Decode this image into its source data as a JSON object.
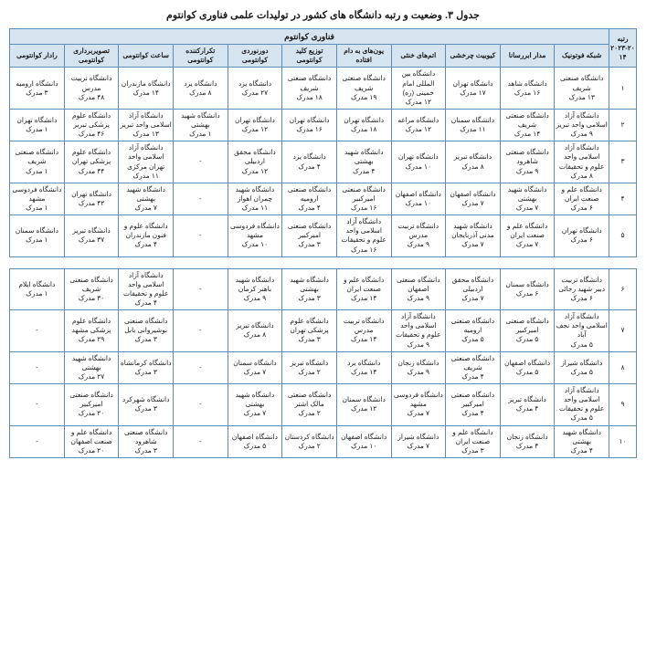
{
  "title": "جدول ۳. وضعیت و رتبه دانشگاه های کشور در تولیدات علمی فناوری کوانتوم",
  "super_header": "فناوری کوانتوم",
  "rank_label": "رتبه",
  "year_label": "۲۰۲۳-۲۰۱۴",
  "headers": [
    "شبکه فوتونیک",
    "مدار ابررسانا",
    "کیوبیت چرخشی",
    "اتم‌های خنثی",
    "یون‌های به دام افتاده",
    "توزیع کلید کوانتومی",
    "دورنوردی کوانتومی",
    "تکرارکننده کوانتومی",
    "ساعت کوانتومی",
    "تصویربرداری کوانتومی",
    "رادار کوانتومی"
  ],
  "colors": {
    "header_bg": "#d6e4f0",
    "border": "#5b8db8",
    "text": "#1a1a1a",
    "bg": "#ffffff"
  },
  "rows1": [
    {
      "rank": "۱",
      "cells": [
        {
          "u": "دانشگاه صنعتی شریف",
          "c": "۱۳ مدرک"
        },
        {
          "u": "دانشگاه شاهد",
          "c": "۱۶ مدرک"
        },
        {
          "u": "دانشگاه تهران",
          "c": "۱۷ مدرک"
        },
        {
          "u": "دانشگاه بین المللی امام خمینی (ره)",
          "c": "۱۲ مدرک"
        },
        {
          "u": "دانشگاه صنعتی شریف",
          "c": "۱۹ مدرک"
        },
        {
          "u": "دانشگاه صنعتی شریف",
          "c": "۱۸ مدرک"
        },
        {
          "u": "دانشگاه یزد",
          "c": "۲۷ مدرک"
        },
        {
          "u": "دانشگاه یزد",
          "c": "۸ مدرک"
        },
        {
          "u": "دانشگاه مازندران",
          "c": "۱۴ مدرک"
        },
        {
          "u": "دانشگاه تربیت مدرس",
          "c": "۴۸ مدرک"
        },
        {
          "u": "دانشگاه ارومیه",
          "c": "۳ مدرک"
        }
      ]
    },
    {
      "rank": "۲",
      "cells": [
        {
          "u": "دانشگاه آزاد اسلامی واحد تبریز",
          "c": "۹ مدرک"
        },
        {
          "u": "دانشگاه صنعتی شریف",
          "c": "۱۴ مدرک"
        },
        {
          "u": "دانشگاه سمنان",
          "c": "۱۱ مدرک"
        },
        {
          "u": "دانشگاه مراغه",
          "c": "۱۲ مدرک"
        },
        {
          "u": "دانشگاه تهران",
          "c": "۱۸ مدرک"
        },
        {
          "u": "دانشگاه تهران",
          "c": "۱۶ مدرک"
        },
        {
          "u": "دانشگاه تهران",
          "c": "۱۲ مدرک"
        },
        {
          "u": "دانشگاه شهید بهشتی",
          "c": "۱ مدرک"
        },
        {
          "u": "دانشگاه آزاد اسلامی واحد تبریز",
          "c": "۱۳ مدرک"
        },
        {
          "u": "دانشگاه علوم پزشکی تبریز",
          "c": "۴۶ مدرک"
        },
        {
          "u": "دانشگاه تهران",
          "c": "۱ مدرک"
        }
      ]
    },
    {
      "rank": "۳",
      "cells": [
        {
          "u": "دانشگاه آزاد اسلامی واحد علوم و تحقیقات",
          "c": "۸ مدرک"
        },
        {
          "u": "دانشگاه صنعتی شاهرود",
          "c": "۹ مدرک"
        },
        {
          "u": "دانشگاه تبریز",
          "c": "۸ مدرک"
        },
        {
          "u": "دانشگاه تهران",
          "c": "۱۰ مدرک"
        },
        {
          "u": "دانشگاه شهید بهشتی",
          "c": "۴ مدرک"
        },
        {
          "u": "دانشگاه یزد",
          "c": "۴ مدرک"
        },
        {
          "u": "دانشگاه محقق اردبیلی",
          "c": "۱۲ مدرک"
        },
        {
          "u": "-",
          "c": ""
        },
        {
          "u": "دانشگاه آزاد اسلامی واحد تهران مرکزی",
          "c": "۱۱ مدرک"
        },
        {
          "u": "دانشگاه علوم پزشکی تهران",
          "c": "۴۴ مدرک"
        },
        {
          "u": "دانشگاه صنعتی شریف",
          "c": "۱ مدرک"
        }
      ]
    },
    {
      "rank": "۴",
      "cells": [
        {
          "u": "دانشگاه علم و صنعت ایران",
          "c": "۶ مدرک"
        },
        {
          "u": "دانشگاه شهید بهشتی",
          "c": "۷ مدرک"
        },
        {
          "u": "دانشگاه اصفهان",
          "c": "۷ مدرک"
        },
        {
          "u": "دانشگاه اصفهان",
          "c": "۱۰ مدرک"
        },
        {
          "u": "دانشگاه صنعتی امیرکبیر",
          "c": "۱۶ مدرک"
        },
        {
          "u": "دانشگاه صنعتی ارومیه",
          "c": "۴ مدرک"
        },
        {
          "u": "دانشگاه شهید چمران اهواز",
          "c": "۱۱ مدرک"
        },
        {
          "u": "-",
          "c": ""
        },
        {
          "u": "دانشگاه شهید بهشتی",
          "c": "۷ مدرک"
        },
        {
          "u": "دانشگاه تهران",
          "c": "۴۲ مدرک"
        },
        {
          "u": "دانشگاه فردوسی مشهد",
          "c": "۱ مدرک"
        }
      ]
    },
    {
      "rank": "۵",
      "cells": [
        {
          "u": "دانشگاه تهران",
          "c": "۶ مدرک"
        },
        {
          "u": "دانشگاه علم و صنعت ایران",
          "c": "۷ مدرک"
        },
        {
          "u": "دانشگاه شهید مدنی آذربایجان",
          "c": "۷ مدرک"
        },
        {
          "u": "دانشگاه تربیت مدرس",
          "c": "۹ مدرک"
        },
        {
          "u": "دانشگاه آزاد اسلامی واحد علوم و تحقیقات",
          "c": "۱۶ مدرک"
        },
        {
          "u": "دانشگاه صنعتی امیرکبیر",
          "c": "۳ مدرک"
        },
        {
          "u": "دانشگاه فردوسی مشهد",
          "c": "۱۰ مدرک"
        },
        {
          "u": "-",
          "c": ""
        },
        {
          "u": "دانشگاه علوم و فنون مازندران",
          "c": "۴ مدرک"
        },
        {
          "u": "دانشگاه تبریز",
          "c": "۳۷ مدرک"
        },
        {
          "u": "دانشگاه سمنان",
          "c": "۱ مدرک"
        }
      ]
    }
  ],
  "rows2": [
    {
      "rank": "۶",
      "cells": [
        {
          "u": "دانشگاه تربیت دبیر شهید رجائی",
          "c": "۶ مدرک"
        },
        {
          "u": "دانشگاه سمنان",
          "c": "۶ مدرک"
        },
        {
          "u": "دانشگاه محقق اردبیلی",
          "c": "۷ مدرک"
        },
        {
          "u": "دانشگاه صنعتی اصفهان",
          "c": "۹ مدرک"
        },
        {
          "u": "دانشگاه علم و صنعت ایران",
          "c": "۱۴ مدرک"
        },
        {
          "u": "دانشگاه شهید بهشتی",
          "c": "۳ مدرک"
        },
        {
          "u": "دانشگاه شهید باهنر کرمان",
          "c": "۹ مدرک"
        },
        {
          "u": "-",
          "c": ""
        },
        {
          "u": "دانشگاه آزاد اسلامی واحد علوم و تحقیقات",
          "c": "۴ مدرک"
        },
        {
          "u": "دانشگاه صنعتی شریف",
          "c": "۳۰ مدرک"
        },
        {
          "u": "دانشگاه ایلام",
          "c": "۱ مدرک"
        }
      ]
    },
    {
      "rank": "۷",
      "cells": [
        {
          "u": "دانشگاه آزاد اسلامی واحد نجف آباد",
          "c": "۵ مدرک"
        },
        {
          "u": "دانشگاه صنعتی امیرکبیر",
          "c": "۵ مدرک"
        },
        {
          "u": "دانشگاه صنعتی ارومیه",
          "c": "۵ مدرک"
        },
        {
          "u": "دانشگاه آزاد اسلامی واحد علوم و تحقیقات",
          "c": "۹ مدرک"
        },
        {
          "u": "دانشگاه تربیت مدرس",
          "c": "۱۴ مدرک"
        },
        {
          "u": "دانشگاه علوم پزشکی تهران",
          "c": "۳ مدرک"
        },
        {
          "u": "دانشگاه تبریز",
          "c": "۸ مدرک"
        },
        {
          "u": "-",
          "c": ""
        },
        {
          "u": "دانشگاه صنعتی نوشیروانی بابل",
          "c": "۳ مدرک"
        },
        {
          "u": "دانشگاه علوم پزشکی مشهد",
          "c": "۲۹ مدرک"
        },
        {
          "u": "-",
          "c": ""
        }
      ]
    },
    {
      "rank": "۸",
      "cells": [
        {
          "u": "دانشگاه شیراز",
          "c": "۵ مدرک"
        },
        {
          "u": "دانشگاه اصفهان",
          "c": "۵ مدرک"
        },
        {
          "u": "دانشگاه صنعتی شریف",
          "c": "۴ مدرک"
        },
        {
          "u": "دانشگاه زنجان",
          "c": "۹ مدرک"
        },
        {
          "u": "دانشگاه یزد",
          "c": "۱۴ مدرک"
        },
        {
          "u": "دانشگاه تبریز",
          "c": "۲ مدرک"
        },
        {
          "u": "دانشگاه سمنان",
          "c": "۷ مدرک"
        },
        {
          "u": "-",
          "c": ""
        },
        {
          "u": "دانشگاه کرمانشاه",
          "c": "۳ مدرک"
        },
        {
          "u": "دانشگاه شهید بهشتی",
          "c": "۲۷ مدرک"
        },
        {
          "u": "-",
          "c": ""
        }
      ]
    },
    {
      "rank": "۹",
      "cells": [
        {
          "u": "دانشگاه آزاد اسلامی واحد علوم و تحقیقات",
          "c": "۵ مدرک"
        },
        {
          "u": "دانشگاه تبریز",
          "c": "۴ مدرک"
        },
        {
          "u": "دانشگاه صنعتی امیرکبیر",
          "c": "۴ مدرک"
        },
        {
          "u": "دانشگاه فردوسی مشهد",
          "c": "۷ مدرک"
        },
        {
          "u": "دانشگاه سمنان",
          "c": "۱۲ مدرک"
        },
        {
          "u": "دانشگاه صنعتی مالک اشتر",
          "c": "۲ مدرک"
        },
        {
          "u": "دانشگاه شهید بهشتی",
          "c": "۷ مدرک"
        },
        {
          "u": "-",
          "c": ""
        },
        {
          "u": "دانشگاه شهرکرد",
          "c": "۳ مدرک"
        },
        {
          "u": "دانشگاه صنعتی امیرکبیر",
          "c": "۲۰ مدرک"
        },
        {
          "u": "-",
          "c": ""
        }
      ]
    },
    {
      "rank": "۱۰",
      "cells": [
        {
          "u": "دانشگاه شهید بهشتی",
          "c": "۴ مدرک"
        },
        {
          "u": "دانشگاه زنجان",
          "c": "۴ مدرک"
        },
        {
          "u": "دانشگاه علم و صنعت ایران",
          "c": "۳ مدرک"
        },
        {
          "u": "دانشگاه شیراز",
          "c": "۷ مدرک"
        },
        {
          "u": "دانشگاه اصفهان",
          "c": "۱۰ مدرک"
        },
        {
          "u": "دانشگاه کردستان",
          "c": "۲ مدرک"
        },
        {
          "u": "دانشگاه اصفهان",
          "c": "۵ مدرک"
        },
        {
          "u": "-",
          "c": ""
        },
        {
          "u": "دانشگاه صنعتی شاهرود",
          "c": "۳ مدرک"
        },
        {
          "u": "دانشگاه علم و صنعت اصفهان",
          "c": "۲۰ مدرک"
        },
        {
          "u": "-",
          "c": ""
        }
      ]
    }
  ]
}
